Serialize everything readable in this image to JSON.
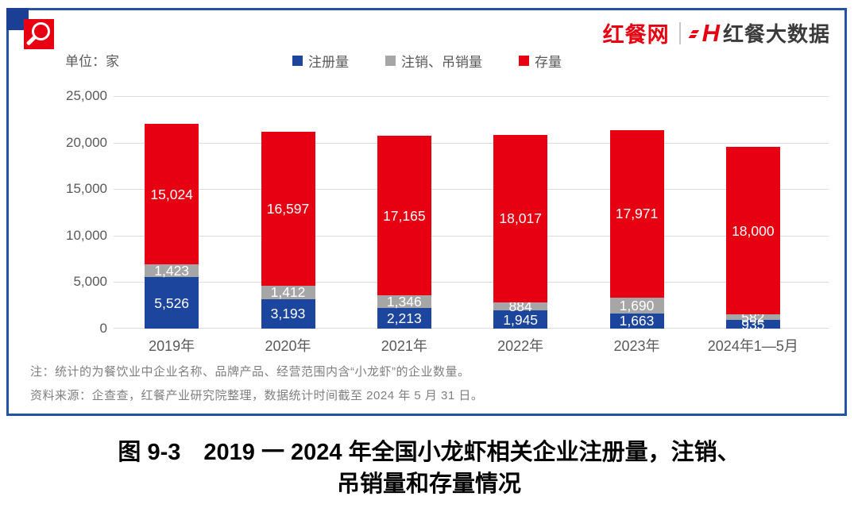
{
  "header": {
    "unit_label": "单位：家",
    "brand_left": "红餐网",
    "brand_right": "红餐大数据"
  },
  "colors": {
    "registered_blue": "#1C459E",
    "deregistered_gray": "#A6A6A6",
    "stock_red": "#E60012",
    "frame_blue": "#2353A5",
    "axis_text": "#595959",
    "note_text": "#7F7F7F"
  },
  "chart_data": {
    "type": "bar",
    "stacked": true,
    "title": "",
    "unit": "家",
    "categories": [
      "2019年",
      "2020年",
      "2021年",
      "2022年",
      "2023年",
      "2024年1—5月"
    ],
    "series": [
      {
        "name": "注册量",
        "color": "#1C459E",
        "values": [
          5526,
          3193,
          2213,
          1945,
          1663,
          935
        ]
      },
      {
        "name": "注销、吊销量",
        "color": "#A6A6A6",
        "values": [
          1423,
          1412,
          1346,
          884,
          1690,
          582
        ]
      },
      {
        "name": "存量",
        "color": "#E60012",
        "values": [
          15024,
          16597,
          17165,
          18017,
          17971,
          18000
        ]
      }
    ],
    "ylim": [
      0,
      25000
    ],
    "yticks": [
      0,
      5000,
      10000,
      15000,
      20000,
      25000
    ],
    "grid": true,
    "legend_position": "top",
    "value_labels": "inside-white"
  },
  "notes": {
    "note1": "注：统计的为餐饮业中企业名称、品牌产品、经营范围内含“小龙虾”的企业数量。",
    "source": "资料来源：企查查，红餐产业研究院整理，数据统计时间截至 2024 年 5 月 31 日。"
  },
  "caption": {
    "line1": "图 9-3　2019 一 2024 年全国小龙虾相关企业注册量，注销、",
    "line2": "吊销量和存量情况"
  }
}
